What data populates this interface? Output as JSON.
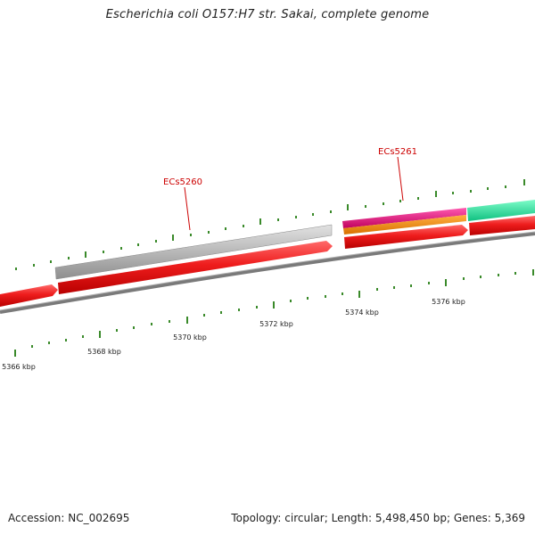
{
  "title": "Escherichia coli O157:H7 str. Sakai, complete genome",
  "accession": {
    "label": "Accession:",
    "value": "NC_002695"
  },
  "summary": {
    "topology_label": "Topology:",
    "topology": "circular",
    "length_label": "Length:",
    "length": "5,498,450 bp",
    "genes_label": "Genes:",
    "genes": "5,369"
  },
  "gene_labels": [
    {
      "name": "ECs5260",
      "color": "#cc0000"
    },
    {
      "name": "ECs5261",
      "color": "#cc0000"
    }
  ],
  "ruler": {
    "unit": "kbp",
    "labels": [
      "5366 kbp",
      "5368 kbp",
      "5370 kbp",
      "5372 kbp",
      "5374 kbp",
      "5376 kbp"
    ]
  },
  "colors": {
    "cds_red": "#e81414",
    "cds_gray": "#b4b4b4",
    "cds_magenta": "#e0157a",
    "cds_orange": "#f08a00",
    "cds_teal": "#20e0a0",
    "backbone": "#7a7a7a",
    "tick_green": "#3a8a2a"
  }
}
